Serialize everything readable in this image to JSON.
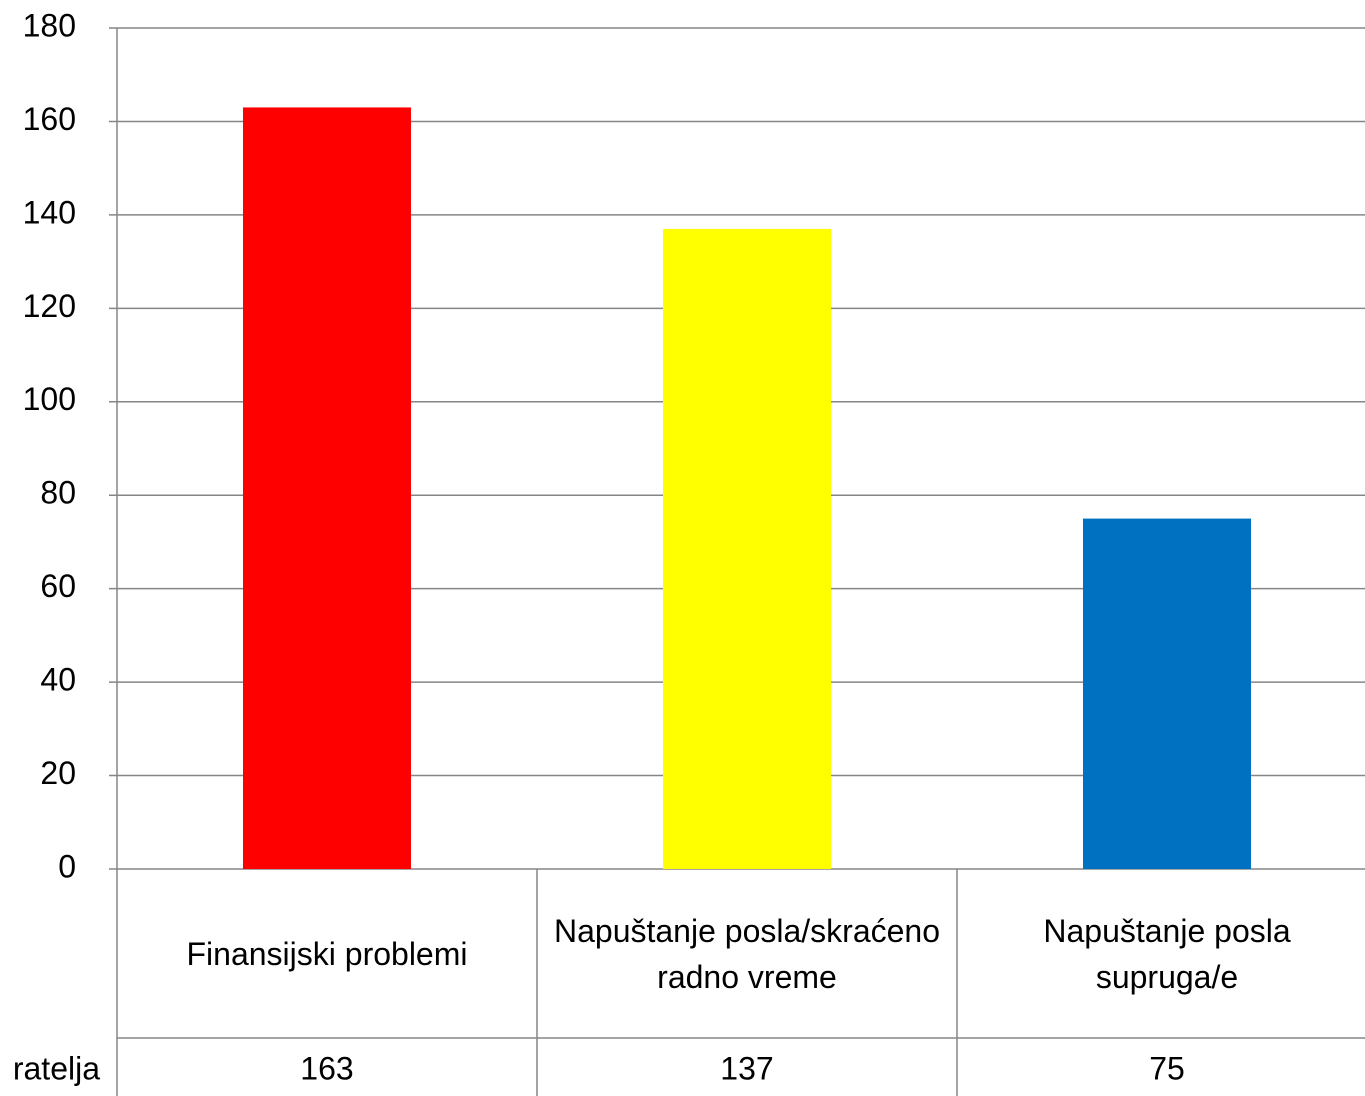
{
  "chart_data": {
    "type": "bar",
    "categories": [
      "Finansijski problemi",
      "Napuštanje posla/skraćeno radno vreme",
      "Napuštanje posla supruga/e"
    ],
    "series": [
      {
        "name": "ratelja",
        "values": [
          163,
          137,
          75
        ]
      }
    ],
    "colors": [
      "#ff0000",
      "#ffff00",
      "#0070c0"
    ],
    "ylim": [
      0,
      180
    ],
    "yticks": [
      0,
      20,
      40,
      60,
      80,
      100,
      120,
      140,
      160,
      180
    ],
    "grid": true,
    "data_table": true
  }
}
